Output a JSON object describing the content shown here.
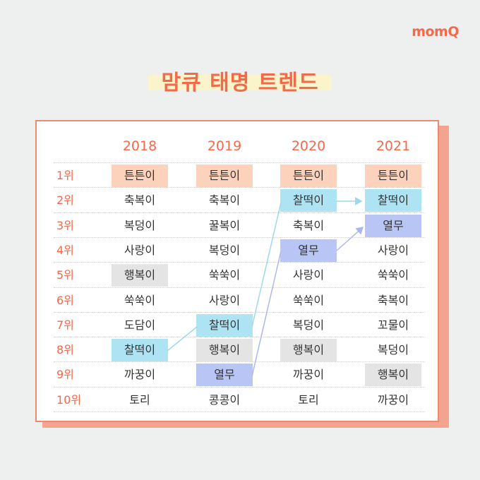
{
  "logo": "momQ",
  "title": "맘큐 태명 트렌드",
  "years": [
    "2018",
    "2019",
    "2020",
    "2021"
  ],
  "ranks": [
    "1위",
    "2위",
    "3위",
    "4위",
    "5위",
    "6위",
    "7위",
    "8위",
    "9위",
    "10위"
  ],
  "columns": [
    [
      "튼튼이",
      "축복이",
      "복덩이",
      "사랑이",
      "행복이",
      "쑥쑥이",
      "도담이",
      "찰떡이",
      "까꿍이",
      "토리"
    ],
    [
      "튼튼이",
      "축복이",
      "꿀복이",
      "복덩이",
      "쑥쑥이",
      "사랑이",
      "찰떡이",
      "행복이",
      "열무",
      "콩콩이"
    ],
    [
      "튼튼이",
      "찰떡이",
      "축복이",
      "열무",
      "사랑이",
      "쑥쑥이",
      "복덩이",
      "행복이",
      "까꿍이",
      "토리"
    ],
    [
      "튼튼이",
      "찰떡이",
      "열무",
      "사랑이",
      "쑥쑥이",
      "축복이",
      "꼬물이",
      "복덩이",
      "행복이",
      "까꿍이"
    ]
  ],
  "highlights": [
    [
      "orange",
      "",
      "",
      "",
      "gray",
      "",
      "",
      "blue",
      "",
      ""
    ],
    [
      "orange",
      "",
      "",
      "",
      "",
      "",
      "blue",
      "gray",
      "purple",
      ""
    ],
    [
      "orange",
      "blue",
      "",
      "purple",
      "",
      "",
      "",
      "gray",
      "",
      ""
    ],
    [
      "orange",
      "blue",
      "purple",
      "",
      "",
      "",
      "",
      "",
      "gray",
      ""
    ]
  ],
  "colors": {
    "accent": "#f26a4b",
    "orange": "#fcd2bd",
    "blue": "#aee3f3",
    "purple": "#b9c5f4",
    "gray": "#e4e4e4",
    "blue_line": "#9bd9ee",
    "purple_line": "#a9b8f0"
  }
}
